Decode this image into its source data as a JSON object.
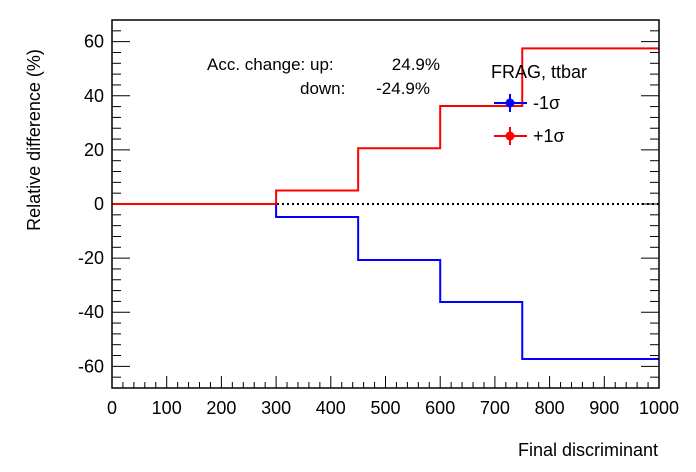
{
  "chart_data": {
    "type": "line",
    "drawstyle": "step",
    "title": "",
    "xlabel": "Final discriminant",
    "ylabel": "Relative difference (%)",
    "xlim": [
      0,
      1000
    ],
    "ylim": [
      -68,
      68
    ],
    "x_ticks": [
      0,
      100,
      200,
      300,
      400,
      500,
      600,
      700,
      800,
      900,
      1000
    ],
    "y_ticks": [
      -60,
      -40,
      -20,
      0,
      20,
      40,
      60
    ],
    "bin_edges": [
      0,
      300,
      450,
      600,
      750,
      1000
    ],
    "series": [
      {
        "name": "-1σ",
        "color": "#0000ff",
        "values": [
          0,
          -4.8,
          -20.7,
          -36.2,
          -57.3
        ]
      },
      {
        "name": "+1σ",
        "color": "#ff0000",
        "values": [
          0,
          5.0,
          20.6,
          36.2,
          57.5
        ]
      }
    ],
    "reference_line": {
      "y": 0,
      "style": "dotted",
      "color": "#000000"
    },
    "legend": {
      "title": "FRAG, ttbar",
      "position": "top-right"
    },
    "annotations": {
      "line1_label": "Acc. change: up:",
      "line1_value": "24.9%",
      "line2_label": "down:",
      "line2_value": "-24.9%"
    },
    "grid": false
  }
}
